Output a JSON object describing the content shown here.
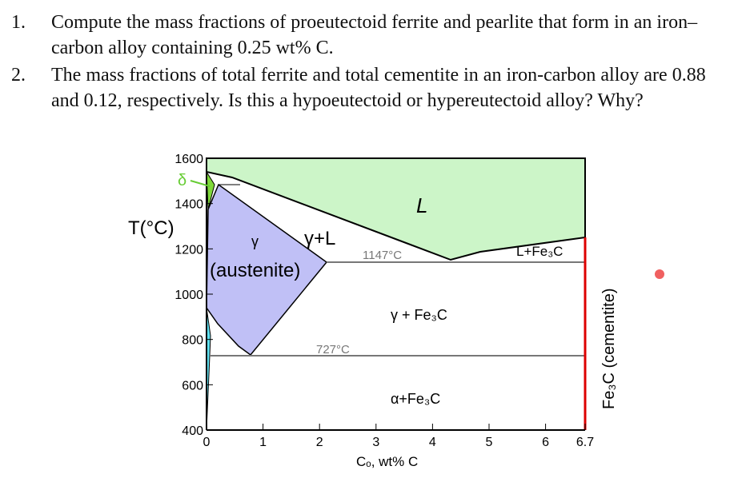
{
  "questions": [
    {
      "number": "1.",
      "text": "Compute the mass fractions of proeutectoid ferrite and pearlite that form in an iron–carbon alloy containing 0.25 wt% C."
    },
    {
      "number": "2.",
      "text": "The mass fractions of total ferrite and total cementite in an iron-carbon alloy are 0.88 and 0.12, respectively. Is this a hypoeutectoid or hypereutectoid alloy? Why?"
    }
  ],
  "figure": {
    "y_label": "T(°C)",
    "x_label": "Cₒ, wt% C",
    "xlim": [
      0,
      6.7
    ],
    "ylim": [
      400,
      1600
    ],
    "xticks": [
      0,
      1,
      2,
      3,
      4,
      5,
      6,
      6.7
    ],
    "yticks": [
      400,
      600,
      800,
      1000,
      1200,
      1400,
      1600
    ],
    "labels": {
      "delta": "δ",
      "liquid": "L",
      "gamma": "γ",
      "gamma_liquid": "γ+L",
      "austenite": "(austenite)",
      "eutectic": "1147°C",
      "liquid_cementite": "L+Fe₃C",
      "gamma_cementite": "γ + Fe₃C",
      "eutectoid": "727°C",
      "alpha_cementite": "α+Fe₃C",
      "cementite": "Fe₃C (cementite)"
    }
  }
}
